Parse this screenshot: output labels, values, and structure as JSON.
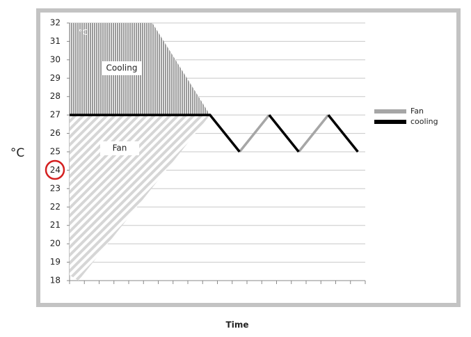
{
  "chart_data": {
    "type": "line",
    "ylabel": "°C",
    "xlabel": "Time",
    "corner_text": "°C",
    "ylim": [
      18,
      32
    ],
    "yticks": [
      18,
      19,
      20,
      21,
      22,
      23,
      24,
      25,
      26,
      27,
      28,
      29,
      30,
      31,
      32
    ],
    "xlim": [
      0,
      20
    ],
    "xticks": [
      0,
      1,
      2,
      3,
      4,
      5,
      6,
      7,
      8,
      9,
      10,
      11,
      12,
      13,
      14,
      15,
      16,
      17,
      18,
      19,
      20
    ],
    "grid": true,
    "legend": "right",
    "series": [
      {
        "name": "Fan",
        "color": "#a6a6a6",
        "x": [
          11.5,
          13.5,
          null,
          15.5,
          17.5
        ],
        "values": [
          25,
          27,
          null,
          25,
          27
        ]
      },
      {
        "name": "cooling",
        "color": "#000000",
        "x": [
          0,
          9.5,
          11.5,
          null,
          13.5,
          15.5,
          null,
          17.5,
          19.5
        ],
        "values": [
          27,
          27,
          25,
          null,
          27,
          25,
          null,
          27,
          25
        ]
      }
    ],
    "areas": [
      {
        "label": "Cooling",
        "x": [
          0,
          0,
          5.6,
          9.5
        ],
        "values": [
          27,
          32,
          32,
          27
        ]
      },
      {
        "label": "Fan",
        "x": [
          0,
          0,
          0.6,
          9.5
        ],
        "values": [
          27,
          18.3,
          18,
          27
        ]
      }
    ]
  }
}
